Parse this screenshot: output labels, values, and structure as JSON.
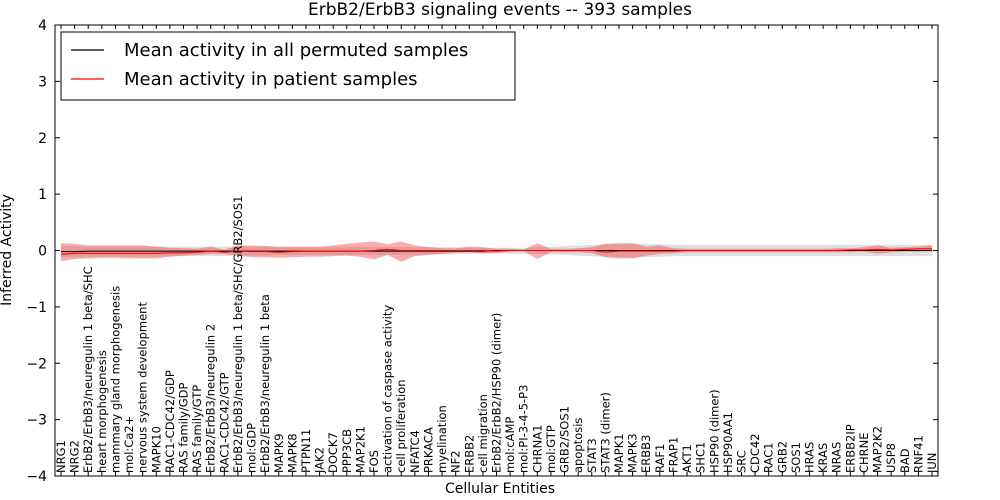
{
  "chart_data": {
    "type": "line",
    "title": "ErbB2/ErbB3 signaling events -- 393 samples",
    "xlabel": "Cellular Entities",
    "ylabel": "Inferred Activity",
    "ylim": [
      -4,
      4
    ],
    "yticks": [
      -4,
      -3,
      -2,
      -1,
      0,
      1,
      2,
      3,
      4
    ],
    "ytick_labels": [
      "−4",
      "−3",
      "−2",
      "−1",
      "0",
      "1",
      "2",
      "3",
      "4"
    ],
    "grid": false,
    "legend_position": "top-left",
    "categories": [
      "NRG1",
      "NRG2",
      "ErbB2/ErbB3/neuregulin 1 beta/SHC",
      "heart morphogenesis",
      "mammary gland morphogenesis",
      "mol:Ca2+",
      "nervous system development",
      "MAPK10",
      "RAC1-CDC42/GDP",
      "RAS family/GDP",
      "RAS family/GTP",
      "ErbB2/ErbB3/neuregulin 2",
      "RAC1-CDC42/GTP",
      "ErbB2/ErbB3/neuregulin 1 beta/SHC/GRB2/SOS1",
      "mol:GDP",
      "ErbB2/ErbB3/neuregulin 1 beta",
      "MAPK9",
      "MAPK8",
      "PTPN11",
      "JAK2",
      "DOCK7",
      "PPP3CB",
      "MAP2K1",
      "FOS",
      "activation of caspase activity",
      "cell proliferation",
      "NFATC4",
      "PRKACA",
      "myelination",
      "NF2",
      "ERBB2",
      "cell migration",
      "ErbB2/ErbB2/HSP90 (dimer)",
      "mol:cAMP",
      "mol:PI-3-4-5-P3",
      "CHRNA1",
      "mol:GTP",
      "GRB2/SOS1",
      "apoptosis",
      "STAT3",
      "STAT3 (dimer)",
      "MAPK1",
      "MAPK3",
      "ERBB3",
      "RAF1",
      "FRAP1",
      "AKT1",
      "SHC1",
      "HSP90 (dimer)",
      "HSP90AA1",
      "SRC",
      "CDC42",
      "RAC1",
      "GRB2",
      "SOS1",
      "HRAS",
      "KRAS",
      "NRAS",
      "ERBB2IP",
      "CHRNE",
      "MAP2K2",
      "USP8",
      "BAD",
      "RNF41",
      "JUN"
    ],
    "series": [
      {
        "name": "Mean activity in all permuted samples",
        "color": "#000000",
        "values": [
          -0.02,
          -0.02,
          -0.01,
          -0.01,
          -0.01,
          -0.01,
          -0.01,
          -0.01,
          -0.01,
          -0.01,
          -0.01,
          -0.01,
          -0.01,
          -0.01,
          -0.01,
          -0.01,
          -0.01,
          -0.01,
          -0.01,
          -0.01,
          -0.01,
          -0.01,
          -0.01,
          -0.01,
          -0.01,
          -0.01,
          -0.01,
          -0.01,
          -0.01,
          -0.01,
          -0.01,
          -0.01,
          0.0,
          0.0,
          0.0,
          0.0,
          0.0,
          0.0,
          0.0,
          0.0,
          0.0,
          0.0,
          0.0,
          0.0,
          0.0,
          0.0,
          0.0,
          0.0,
          0.0,
          0.0,
          0.0,
          0.0,
          0.0,
          0.0,
          0.0,
          0.0,
          0.0,
          0.0,
          0.0,
          0.0,
          0.0,
          0.0,
          0.0,
          0.0,
          0.0
        ],
        "band_low": [
          -0.12,
          -0.12,
          -0.11,
          -0.11,
          -0.11,
          -0.11,
          -0.11,
          -0.11,
          -0.1,
          -0.1,
          -0.1,
          -0.1,
          -0.1,
          -0.09,
          -0.09,
          -0.09,
          -0.08,
          -0.08,
          -0.08,
          -0.08,
          -0.08,
          -0.08,
          -0.08,
          -0.08,
          -0.08,
          -0.08,
          -0.08,
          -0.07,
          -0.07,
          -0.07,
          -0.06,
          -0.06,
          -0.06,
          -0.06,
          -0.06,
          -0.06,
          -0.07,
          -0.08,
          -0.09,
          -0.1,
          -0.11,
          -0.12,
          -0.12,
          -0.12,
          -0.11,
          -0.1,
          -0.1,
          -0.1,
          -0.1,
          -0.1,
          -0.1,
          -0.1,
          -0.1,
          -0.1,
          -0.1,
          -0.1,
          -0.1,
          -0.1,
          -0.1,
          -0.1,
          -0.1,
          -0.1,
          -0.1,
          -0.1,
          -0.1
        ],
        "band_high": [
          0.08,
          0.08,
          0.07,
          0.07,
          0.07,
          0.07,
          0.07,
          0.07,
          0.07,
          0.07,
          0.07,
          0.07,
          0.07,
          0.07,
          0.07,
          0.07,
          0.06,
          0.06,
          0.06,
          0.06,
          0.06,
          0.06,
          0.06,
          0.06,
          0.06,
          0.06,
          0.06,
          0.06,
          0.06,
          0.06,
          0.05,
          0.05,
          0.05,
          0.05,
          0.05,
          0.06,
          0.07,
          0.08,
          0.09,
          0.1,
          0.11,
          0.12,
          0.12,
          0.12,
          0.11,
          0.1,
          0.1,
          0.1,
          0.1,
          0.1,
          0.1,
          0.1,
          0.1,
          0.1,
          0.1,
          0.1,
          0.1,
          0.1,
          0.1,
          0.1,
          0.1,
          0.1,
          0.1,
          0.1,
          0.1
        ]
      },
      {
        "name": "Mean activity in patient samples",
        "color": "#ff0000",
        "values": [
          -0.07,
          -0.05,
          -0.05,
          -0.05,
          -0.05,
          -0.05,
          -0.05,
          -0.05,
          -0.04,
          -0.04,
          -0.03,
          -0.01,
          -0.03,
          -0.01,
          -0.02,
          -0.02,
          -0.03,
          -0.02,
          -0.01,
          -0.01,
          -0.01,
          -0.01,
          -0.01,
          0.0,
          0.02,
          0.0,
          0.0,
          0.0,
          0.0,
          0.0,
          0.0,
          0.0,
          -0.01,
          0.0,
          0.0,
          0.0,
          0.0,
          0.0,
          0.0,
          0.0,
          -0.03,
          -0.01,
          -0.01,
          -0.01,
          -0.01,
          -0.01,
          0.0,
          0.0,
          0.0,
          0.0,
          0.0,
          0.0,
          0.0,
          0.0,
          0.0,
          0.0,
          0.0,
          0.0,
          0.01,
          0.01,
          0.02,
          0.01,
          0.02,
          0.03,
          0.03
        ],
        "band_low": [
          -0.19,
          -0.15,
          -0.14,
          -0.13,
          -0.13,
          -0.14,
          -0.14,
          -0.14,
          -0.11,
          -0.09,
          -0.08,
          -0.06,
          -0.06,
          -0.09,
          -0.12,
          -0.12,
          -0.13,
          -0.12,
          -0.11,
          -0.11,
          -0.1,
          -0.09,
          -0.11,
          -0.16,
          -0.08,
          -0.2,
          -0.1,
          -0.08,
          -0.06,
          -0.04,
          -0.03,
          -0.05,
          -0.04,
          -0.02,
          -0.01,
          -0.15,
          -0.03,
          -0.03,
          -0.03,
          -0.05,
          -0.12,
          -0.14,
          -0.14,
          -0.09,
          -0.06,
          -0.05,
          -0.03,
          -0.03,
          -0.03,
          -0.03,
          -0.03,
          -0.03,
          -0.03,
          -0.03,
          -0.03,
          -0.03,
          -0.03,
          -0.03,
          -0.03,
          -0.02,
          -0.06,
          -0.03,
          -0.02,
          -0.02,
          -0.01
        ],
        "band_high": [
          0.13,
          0.12,
          0.09,
          0.09,
          0.09,
          0.09,
          0.09,
          0.07,
          0.05,
          0.04,
          0.03,
          0.07,
          0.01,
          0.09,
          0.09,
          0.08,
          0.07,
          0.07,
          0.07,
          0.07,
          0.09,
          0.12,
          0.14,
          0.16,
          0.11,
          0.16,
          0.09,
          0.06,
          0.04,
          0.04,
          0.07,
          0.06,
          0.03,
          0.03,
          0.02,
          0.13,
          0.03,
          0.03,
          0.04,
          0.06,
          0.12,
          0.13,
          0.13,
          0.07,
          0.09,
          0.04,
          0.03,
          0.03,
          0.03,
          0.03,
          0.03,
          0.03,
          0.03,
          0.03,
          0.03,
          0.03,
          0.03,
          0.04,
          0.04,
          0.06,
          0.09,
          0.05,
          0.06,
          0.07,
          0.09
        ]
      }
    ]
  }
}
